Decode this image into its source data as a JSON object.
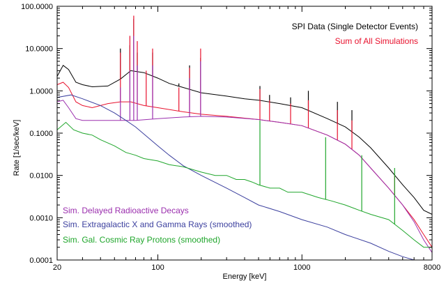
{
  "chart_data": {
    "type": "line",
    "xlabel": "Energy [keV]",
    "ylabel": "Rate [1/sec/keV]",
    "xscale": "log",
    "yscale": "log",
    "xlim": [
      20,
      8000
    ],
    "ylim": [
      0.0001,
      100
    ],
    "x_ticks": [
      20,
      100,
      1000,
      8000
    ],
    "x_tick_labels": [
      "20",
      "100",
      "1000",
      "8000"
    ],
    "y_ticks": [
      0.0001,
      0.001,
      0.01,
      0.1,
      1,
      10,
      100
    ],
    "y_tick_labels": [
      "0.0001",
      "0.0010",
      "0.0100",
      "0.1000",
      "1.0000",
      "10.0000",
      "100.0000"
    ],
    "grid": false,
    "legend_top": [
      {
        "label": "SPI Data (Single Detector Events)",
        "color": "#000000"
      },
      {
        "label": "Sum of All Simulations",
        "color": "#e8112d"
      }
    ],
    "legend_bottom": [
      {
        "label": "Sim. Delayed Radioactive Decays",
        "color": "#9b2fae"
      },
      {
        "label": "Sim. Extragalactic X and Gamma Rays (smoothed)",
        "color": "#3b3f9e"
      },
      {
        "label": "Sim. Gal. Cosmic Ray Protons (smoothed)",
        "color": "#1fa62b"
      }
    ],
    "series": [
      {
        "color": "#000000",
        "points": [
          [
            20,
            2.2
          ],
          [
            22,
            4.0
          ],
          [
            24,
            3.2
          ],
          [
            27,
            1.6
          ],
          [
            30,
            1.4
          ],
          [
            35,
            1.25
          ],
          [
            45,
            1.3
          ],
          [
            55,
            1.9
          ],
          [
            65,
            3.0
          ],
          [
            80,
            2.7
          ],
          [
            100,
            2.0
          ],
          [
            120,
            1.5
          ],
          [
            150,
            1.2
          ],
          [
            200,
            0.9
          ],
          [
            300,
            0.75
          ],
          [
            400,
            0.65
          ],
          [
            500,
            0.6
          ],
          [
            700,
            0.5
          ],
          [
            1000,
            0.4
          ],
          [
            1500,
            0.22
          ],
          [
            2000,
            0.14
          ],
          [
            2500,
            0.08
          ],
          [
            3000,
            0.045
          ],
          [
            4000,
            0.015
          ],
          [
            5000,
            0.006
          ],
          [
            6000,
            0.003
          ],
          [
            7000,
            0.0015
          ],
          [
            8000,
            0.0012
          ]
        ],
        "lines": [
          [
            55,
            10
          ],
          [
            64,
            12
          ],
          [
            68,
            50
          ],
          [
            72,
            8
          ],
          [
            92,
            8
          ],
          [
            140,
            1.5
          ],
          [
            166,
            4
          ],
          [
            198,
            6
          ],
          [
            511,
            1.3
          ],
          [
            596,
            0.8
          ],
          [
            834,
            0.7
          ],
          [
            1108,
            1.0
          ],
          [
            1764,
            0.55
          ],
          [
            2223,
            0.35
          ]
        ]
      },
      {
        "color": "#e8112d",
        "points": [
          [
            20,
            1.4
          ],
          [
            22,
            1.6
          ],
          [
            24,
            1.2
          ],
          [
            27,
            0.55
          ],
          [
            30,
            0.45
          ],
          [
            35,
            0.4
          ],
          [
            45,
            0.5
          ],
          [
            55,
            0.55
          ],
          [
            65,
            0.55
          ],
          [
            80,
            0.45
          ],
          [
            100,
            0.4
          ],
          [
            150,
            0.32
          ],
          [
            200,
            0.28
          ],
          [
            300,
            0.25
          ],
          [
            500,
            0.21
          ],
          [
            700,
            0.18
          ],
          [
            1000,
            0.15
          ],
          [
            1500,
            0.09
          ],
          [
            2000,
            0.055
          ],
          [
            2500,
            0.03
          ],
          [
            3000,
            0.015
          ],
          [
            4000,
            0.005
          ],
          [
            5000,
            0.002
          ],
          [
            6000,
            0.0009
          ],
          [
            7000,
            0.0004
          ],
          [
            8000,
            0.0002
          ]
        ],
        "lines": [
          [
            55,
            8
          ],
          [
            64,
            20
          ],
          [
            68,
            60
          ],
          [
            72,
            15
          ],
          [
            83,
            3
          ],
          [
            92,
            10
          ],
          [
            140,
            1.2
          ],
          [
            166,
            3.5
          ],
          [
            198,
            10
          ],
          [
            511,
            1.1
          ],
          [
            596,
            0.6
          ],
          [
            834,
            0.5
          ],
          [
            1108,
            0.6
          ],
          [
            1764,
            0.35
          ],
          [
            2223,
            0.2
          ],
          [
            4400,
            0.01
          ]
        ]
      },
      {
        "color": "#9b2fae",
        "points": [
          [
            20,
            0.55
          ],
          [
            22,
            0.6
          ],
          [
            24,
            0.4
          ],
          [
            27,
            0.22
          ],
          [
            30,
            0.2
          ],
          [
            40,
            0.2
          ],
          [
            55,
            0.2
          ],
          [
            70,
            0.2
          ],
          [
            100,
            0.22
          ],
          [
            150,
            0.24
          ],
          [
            200,
            0.25
          ],
          [
            300,
            0.24
          ],
          [
            500,
            0.21
          ],
          [
            700,
            0.18
          ],
          [
            1000,
            0.15
          ],
          [
            1500,
            0.09
          ],
          [
            2000,
            0.055
          ],
          [
            2500,
            0.03
          ],
          [
            3000,
            0.015
          ],
          [
            4000,
            0.005
          ],
          [
            5000,
            0.002
          ],
          [
            6000,
            0.0008
          ],
          [
            7000,
            0.0003
          ],
          [
            8000,
            0.00015
          ]
        ],
        "lines": [
          [
            55,
            1.2
          ],
          [
            64,
            3
          ],
          [
            68,
            20
          ],
          [
            72,
            4
          ],
          [
            92,
            4
          ],
          [
            166,
            2
          ],
          [
            198,
            5
          ]
        ]
      },
      {
        "color": "#3b3f9e",
        "points": [
          [
            20,
            0.7
          ],
          [
            25,
            0.8
          ],
          [
            30,
            0.65
          ],
          [
            40,
            0.45
          ],
          [
            50,
            0.3
          ],
          [
            60,
            0.2
          ],
          [
            70,
            0.14
          ],
          [
            85,
            0.08
          ],
          [
            100,
            0.05
          ],
          [
            120,
            0.03
          ],
          [
            150,
            0.017
          ],
          [
            200,
            0.01
          ],
          [
            300,
            0.005
          ],
          [
            400,
            0.003
          ],
          [
            500,
            0.002
          ],
          [
            700,
            0.0014
          ],
          [
            1000,
            0.0009
          ],
          [
            1500,
            0.0006
          ],
          [
            2000,
            0.0004
          ],
          [
            3000,
            0.00025
          ],
          [
            4000,
            0.00016
          ],
          [
            5000,
            0.00012
          ],
          [
            6000,
            0.0001
          ]
        ],
        "lines": []
      },
      {
        "color": "#1fa62b",
        "points": [
          [
            20,
            0.12
          ],
          [
            23,
            0.18
          ],
          [
            26,
            0.12
          ],
          [
            30,
            0.1
          ],
          [
            35,
            0.09
          ],
          [
            40,
            0.07
          ],
          [
            50,
            0.05
          ],
          [
            60,
            0.035
          ],
          [
            70,
            0.03
          ],
          [
            80,
            0.025
          ],
          [
            100,
            0.022
          ],
          [
            120,
            0.018
          ],
          [
            150,
            0.016
          ],
          [
            200,
            0.012
          ],
          [
            250,
            0.01
          ],
          [
            300,
            0.01
          ],
          [
            350,
            0.008
          ],
          [
            400,
            0.008
          ],
          [
            450,
            0.007
          ],
          [
            500,
            0.006
          ],
          [
            600,
            0.005
          ],
          [
            700,
            0.005
          ],
          [
            800,
            0.004
          ],
          [
            1000,
            0.004
          ],
          [
            1300,
            0.003
          ],
          [
            1600,
            0.0025
          ],
          [
            2000,
            0.002
          ],
          [
            2500,
            0.0015
          ],
          [
            3000,
            0.0012
          ],
          [
            4000,
            0.0009
          ],
          [
            5000,
            0.0005
          ],
          [
            6000,
            0.0003
          ],
          [
            7000,
            0.0002
          ],
          [
            8000,
            0.0002
          ]
        ],
        "lines": [
          [
            511,
            0.2
          ],
          [
            1460,
            0.08
          ],
          [
            2600,
            0.03
          ],
          [
            4400,
            0.015
          ]
        ]
      }
    ]
  }
}
